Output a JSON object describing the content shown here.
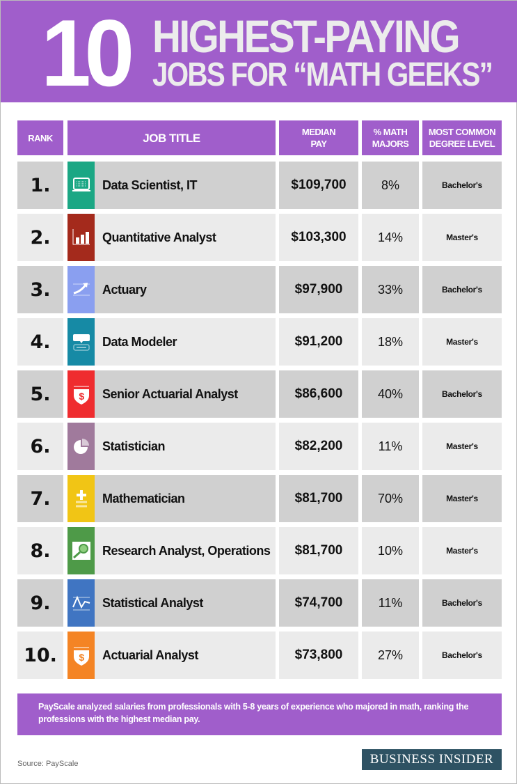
{
  "header": {
    "number": "10",
    "line1": "HIGHEST-PAYING",
    "line2": "JOBS FOR “MATH GEEKS”"
  },
  "chart_data": {
    "type": "table",
    "columns": [
      "RANK",
      "JOB TITLE",
      "MEDIAN\nPAY",
      "% MATH\nMAJORS",
      "MOST COMMON\nDEGREE LEVEL"
    ],
    "rows": [
      {
        "rank": "1.",
        "job": "Data Scientist, IT",
        "pay": "$109,700",
        "pct": "8%",
        "degree": "Bachelor's",
        "icon": "laptop-icon",
        "color": "#1ba784"
      },
      {
        "rank": "2.",
        "job": "Quantitative Analyst",
        "pay": "$103,300",
        "pct": "14%",
        "degree": "Master's",
        "icon": "bar-chart-icon",
        "color": "#a42a1c"
      },
      {
        "rank": "3.",
        "job": "Actuary",
        "pay": "$97,900",
        "pct": "33%",
        "degree": "Bachelor's",
        "icon": "trend-arrow-icon",
        "color": "#8a9ff0"
      },
      {
        "rank": "4.",
        "job": "Data Modeler",
        "pay": "$91,200",
        "pct": "18%",
        "degree": "Master's",
        "icon": "keyboard-icon",
        "color": "#168aa5"
      },
      {
        "rank": "5.",
        "job": "Senior Actuarial Analyst",
        "pay": "$86,600",
        "pct": "40%",
        "degree": "Bachelor's",
        "icon": "dollar-shield-icon",
        "color": "#ef2c2f"
      },
      {
        "rank": "6.",
        "job": "Statistician",
        "pay": "$82,200",
        "pct": "11%",
        "degree": "Master's",
        "icon": "pie-chart-icon",
        "color": "#a07a9c"
      },
      {
        "rank": "7.",
        "job": "Mathematician",
        "pay": "$81,700",
        "pct": "70%",
        "degree": "Master's",
        "icon": "plus-equals-icon",
        "color": "#f1c515"
      },
      {
        "rank": "8.",
        "job": "Research Analyst, Operations",
        "pay": "$81,700",
        "pct": "10%",
        "degree": "Master's",
        "icon": "magnifier-icon",
        "color": "#4e9a48"
      },
      {
        "rank": "9.",
        "job": "Statistical Analyst",
        "pay": "$74,700",
        "pct": "11%",
        "degree": "Bachelor's",
        "icon": "line-graph-icon",
        "color": "#4075c2"
      },
      {
        "rank": "10.",
        "job": "Actuarial Analyst",
        "pay": "$73,800",
        "pct": "27%",
        "degree": "Bachelor's",
        "icon": "dollar-shield-icon",
        "color": "#f48424"
      }
    ]
  },
  "note": "PayScale analyzed salaries from professionals with 5-8 years of experience who majored in math, ranking the professions with the highest median pay.",
  "source": "Source: PayScale",
  "logo": "BUSINESS INSIDER",
  "colors": {
    "purple": "#a05ecb",
    "row_dark": "#d0d0d0",
    "row_light": "#ebebeb",
    "logo_bg": "#2e5263"
  }
}
